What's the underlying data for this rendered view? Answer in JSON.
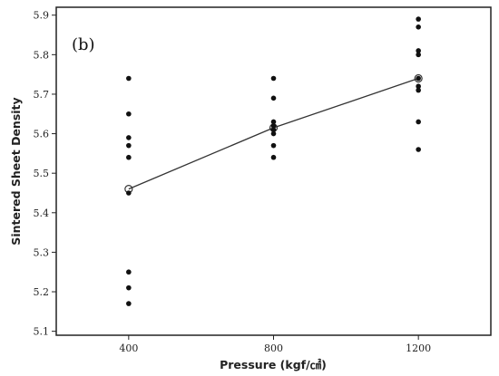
{
  "chart_data": {
    "type": "scatter",
    "panel_label": "(b)",
    "xlabel": "Pressure (kgf/㎠)",
    "ylabel": "Sintered Sheet Density",
    "x_ticks": [
      "400",
      "800",
      "1200"
    ],
    "y_ticks": [
      "5.1",
      "5.2",
      "5.3",
      "5.4",
      "5.5",
      "5.6",
      "5.7",
      "5.8",
      "5.9"
    ],
    "xlim": [
      200,
      1400
    ],
    "ylim": [
      5.09,
      5.92
    ],
    "grid": false,
    "series": [
      {
        "points": [
          {
            "x": 400,
            "y": 5.74
          },
          {
            "x": 400,
            "y": 5.65
          },
          {
            "x": 400,
            "y": 5.59
          },
          {
            "x": 400,
            "y": 5.57
          },
          {
            "x": 400,
            "y": 5.54
          },
          {
            "x": 400,
            "y": 5.45
          },
          {
            "x": 400,
            "y": 5.25
          },
          {
            "x": 400,
            "y": 5.21
          },
          {
            "x": 400,
            "y": 5.17
          },
          {
            "x": 800,
            "y": 5.74
          },
          {
            "x": 800,
            "y": 5.69
          },
          {
            "x": 800,
            "y": 5.63
          },
          {
            "x": 800,
            "y": 5.62
          },
          {
            "x": 800,
            "y": 5.61
          },
          {
            "x": 800,
            "y": 5.6
          },
          {
            "x": 800,
            "y": 5.57
          },
          {
            "x": 800,
            "y": 5.54
          },
          {
            "x": 1200,
            "y": 5.89
          },
          {
            "x": 1200,
            "y": 5.87
          },
          {
            "x": 1200,
            "y": 5.81
          },
          {
            "x": 1200,
            "y": 5.8
          },
          {
            "x": 1200,
            "y": 5.74
          },
          {
            "x": 1200,
            "y": 5.72
          },
          {
            "x": 1200,
            "y": 5.71
          },
          {
            "x": 1200,
            "y": 5.63
          },
          {
            "x": 1200,
            "y": 5.56
          }
        ]
      }
    ],
    "mean_line": {
      "points": [
        {
          "x": 400,
          "y": 5.46
        },
        {
          "x": 800,
          "y": 5.615
        },
        {
          "x": 1200,
          "y": 5.74
        }
      ]
    },
    "colors": {
      "points": "#111111",
      "line": "#333333",
      "axis": "#222222"
    }
  }
}
